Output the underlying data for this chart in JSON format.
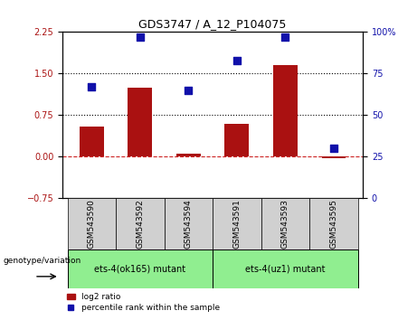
{
  "title": "GDS3747 / A_12_P104075",
  "samples": [
    "GSM543590",
    "GSM543592",
    "GSM543594",
    "GSM543591",
    "GSM543593",
    "GSM543595"
  ],
  "log2_ratio": [
    0.55,
    1.25,
    0.05,
    0.6,
    1.65,
    -0.02
  ],
  "percentile_rank": [
    67,
    97,
    65,
    83,
    97,
    30
  ],
  "bar_color": "#aa1111",
  "dot_color": "#1111aa",
  "groups": [
    {
      "label": "ets-4(ok165) mutant",
      "samples": [
        0,
        1,
        2
      ],
      "color": "#90ee90"
    },
    {
      "label": "ets-4(uz1) mutant",
      "samples": [
        3,
        4,
        5
      ],
      "color": "#90ee90"
    }
  ],
  "left_ylim": [
    -0.75,
    2.25
  ],
  "right_ylim": [
    0,
    100
  ],
  "left_yticks": [
    -0.75,
    0,
    0.75,
    1.5,
    2.25
  ],
  "right_yticks": [
    0,
    25,
    50,
    75,
    100
  ],
  "hlines": [
    0.75,
    1.5
  ],
  "hline_zero_color": "#cc2222",
  "background_color": "#f0f0f0",
  "sample_box_color": "#d0d0d0",
  "legend_label_bar": "log2 ratio",
  "legend_label_dot": "percentile rank within the sample"
}
